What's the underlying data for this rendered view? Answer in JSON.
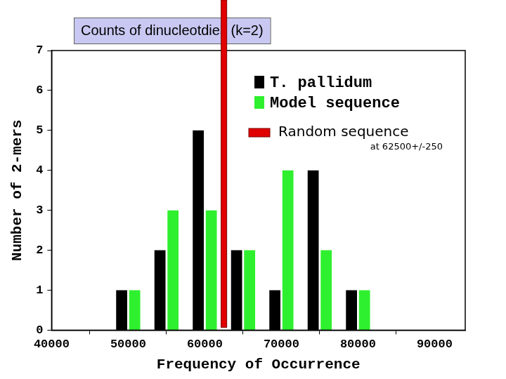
{
  "chart_data": {
    "type": "bar",
    "title": "Counts of dinucleotdies (k=2)",
    "x_label": "Frequency of Occurrence",
    "y_label": "Number of 2-mers",
    "x": [
      50000,
      55000,
      60000,
      65000,
      70000,
      75000,
      80000
    ],
    "series": [
      {
        "name": "T. pallidum",
        "color": "#000000",
        "values": [
          1,
          2,
          5,
          2,
          1,
          4,
          1
        ]
      },
      {
        "name": "Model sequence",
        "color": "#2ef02e",
        "values": [
          1,
          3,
          3,
          2,
          4,
          2,
          1
        ]
      }
    ],
    "xlim": [
      40000,
      94000
    ],
    "xticks": [
      40000,
      50000,
      60000,
      70000,
      80000,
      90000
    ],
    "ylim": [
      0,
      7
    ],
    "yticks": [
      0,
      1,
      2,
      3,
      4,
      5,
      6,
      7
    ],
    "grid": false,
    "legend": "upper right",
    "annotations": [
      {
        "type": "vline",
        "x": 62500,
        "label": "Random sequence",
        "note": "at 62500+/-250",
        "color": "#e00000"
      }
    ]
  }
}
